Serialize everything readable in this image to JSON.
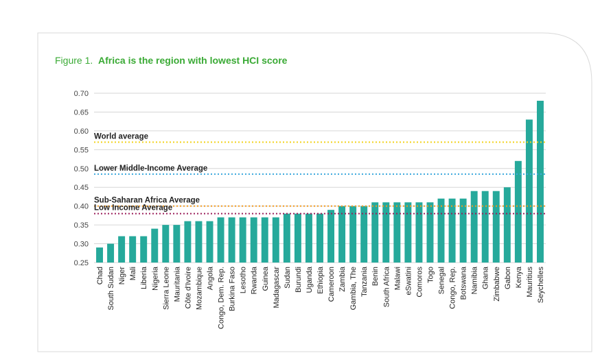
{
  "figure": {
    "number": "Figure 1.",
    "title": "Africa is the region with lowest HCI score"
  },
  "chart_data": {
    "type": "bar",
    "title": "Africa is the region with lowest HCI score",
    "xlabel": "",
    "ylabel": "",
    "ylim": [
      0.25,
      0.7
    ],
    "yticks": [
      "0.70",
      "0.65",
      "0.60",
      "0.55",
      "0.50",
      "0.45",
      "0.40",
      "0.35",
      "0.30",
      "0.25"
    ],
    "grid": true,
    "bar_color": "#26a99b",
    "categories": [
      "Chad",
      "South Sudan",
      "Niger",
      "Mali",
      "Liberia",
      "Nigeria",
      "Sierra Leone",
      "Mauritania",
      "Côte d'Ivoire",
      "Mozambique",
      "Angola",
      "Congo, Dem. Rep.",
      "Burkina Faso",
      "Lesotho",
      "Rwanda",
      "Guinea",
      "Madagascar",
      "Sudan",
      "Burundi",
      "Uganda",
      "Ethiopia",
      "Cameroon",
      "Zambia",
      "Gambia, The",
      "Tanzania",
      "Benin",
      "South Africa",
      "Malawi",
      "eSwatini",
      "Comoros",
      "Togo",
      "Senegal",
      "Congo, Rep.",
      "Botswana",
      "Namibia",
      "Ghana",
      "Zimbabwe",
      "Gabon",
      "Kenya",
      "Mauritius",
      "Seychelles"
    ],
    "values": [
      0.29,
      0.3,
      0.32,
      0.32,
      0.32,
      0.34,
      0.35,
      0.35,
      0.36,
      0.36,
      0.36,
      0.37,
      0.37,
      0.37,
      0.37,
      0.37,
      0.37,
      0.38,
      0.38,
      0.38,
      0.38,
      0.39,
      0.4,
      0.4,
      0.4,
      0.41,
      0.41,
      0.41,
      0.41,
      0.41,
      0.41,
      0.42,
      0.42,
      0.42,
      0.44,
      0.44,
      0.44,
      0.45,
      0.52,
      0.63,
      0.68
    ],
    "reference_lines": [
      {
        "name": "World average",
        "value": 0.57,
        "color": "#f2d21b"
      },
      {
        "name": "Lower Middle-Income Average",
        "value": 0.485,
        "color": "#3fa9dd"
      },
      {
        "name": "Sub-Saharan Africa Average",
        "value": 0.4,
        "color": "#f39a1e"
      },
      {
        "name": "Low Income Average",
        "value": 0.38,
        "color": "#9b1d5a"
      }
    ]
  }
}
